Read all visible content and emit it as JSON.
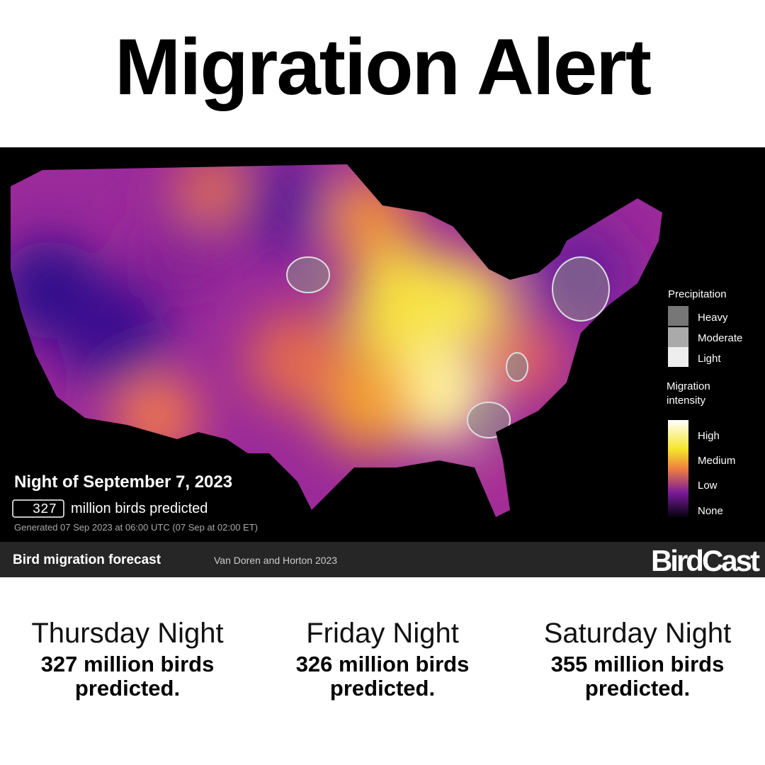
{
  "header": {
    "title": "Migration Alert"
  },
  "map": {
    "date": "Night of September 7, 2023",
    "count": 327,
    "count_label": "million birds predicted",
    "generated": "Generated 07 Sep 2023 at 06:00 UTC (07 Sep at 02:00 ET)",
    "precipitation_legend": {
      "title": "Precipitation",
      "items": [
        "Heavy",
        "Moderate",
        "Light"
      ]
    },
    "intensity_legend": {
      "title": "Migration intensity",
      "items": [
        "High",
        "Medium",
        "Low",
        "None"
      ]
    }
  },
  "footer": {
    "title": "Bird migration forecast",
    "credit": "Van Doren and Horton 2023",
    "logo": "BirdCast"
  },
  "forecasts": [
    {
      "day": "Thursday Night",
      "text": "327 million birds predicted."
    },
    {
      "day": "Friday Night",
      "text": "326 million birds predicted."
    },
    {
      "day": "Saturday Night",
      "text": "355 million birds predicted."
    }
  ]
}
